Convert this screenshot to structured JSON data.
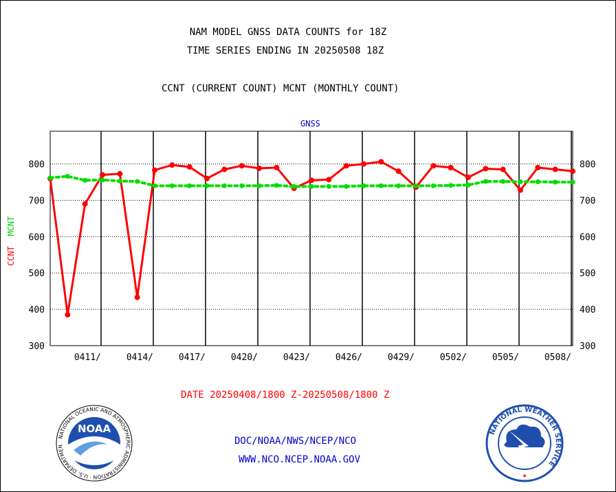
{
  "header": {
    "title_line1": "NAM MODEL GNSS DATA COUNTS for 18Z",
    "title_line2": "TIME SERIES ENDING IN 20250508 18Z",
    "subtitle": "CCNT (CURRENT COUNT) MCNT (MONTHLY COUNT)"
  },
  "footer": {
    "date_range": "DATE 20250408/1800 Z-20250508/1800 Z",
    "credit_line1": "DOC/NOAA/NWS/NCEP/NCO",
    "credit_line2": "WWW.NCO.NCEP.NOAA.GOV"
  },
  "logos": {
    "noaa_text": "NOAA",
    "noaa_ring": "NATIONAL OCEANIC AND ATMOSPHERIC ADMINISTRATION · U.S. DEPARTMENT OF COMMERCE",
    "nws_ring": "NATIONAL WEATHER SERVICE"
  },
  "chart_data": {
    "type": "line",
    "panel_label": "GNSS",
    "ylabel_ccnt": "CCNT",
    "ylabel_mcnt": "MCNT",
    "ylim": [
      300,
      890
    ],
    "yticks": [
      300,
      400,
      500,
      600,
      700,
      800
    ],
    "x_day_range": [
      0,
      30
    ],
    "xticks": [
      {
        "day": 3,
        "label": "0411/"
      },
      {
        "day": 6,
        "label": "0414/"
      },
      {
        "day": 9,
        "label": "0417/"
      },
      {
        "day": 12,
        "label": "0420/"
      },
      {
        "day": 15,
        "label": "0423/"
      },
      {
        "day": 18,
        "label": "0426/"
      },
      {
        "day": 21,
        "label": "0429/"
      },
      {
        "day": 24,
        "label": "0502/"
      },
      {
        "day": 27,
        "label": "0505/"
      },
      {
        "day": 30,
        "label": "0508/"
      }
    ],
    "grid": true,
    "series": [
      {
        "name": "CCNT",
        "color": "#ff0000",
        "style": "solid",
        "values": [
          760,
          385,
          690,
          770,
          773,
          433,
          783,
          797,
          792,
          760,
          785,
          795,
          788,
          790,
          733,
          755,
          757,
          795,
          800,
          806,
          780,
          736,
          795,
          790,
          763,
          787,
          785,
          728,
          790,
          785,
          780
        ]
      },
      {
        "name": "MCNT",
        "color": "#00dd00",
        "style": "dotted",
        "values": [
          762,
          766,
          755,
          756,
          753,
          752,
          740,
          740,
          740,
          740,
          740,
          740,
          740,
          741,
          738,
          738,
          738,
          738,
          740,
          740,
          740,
          740,
          740,
          741,
          742,
          752,
          752,
          751,
          751,
          750,
          750
        ]
      }
    ]
  },
  "colors": {
    "ccnt": "#ff0000",
    "mcnt": "#00dd00",
    "text_blue": "#0000cc"
  }
}
